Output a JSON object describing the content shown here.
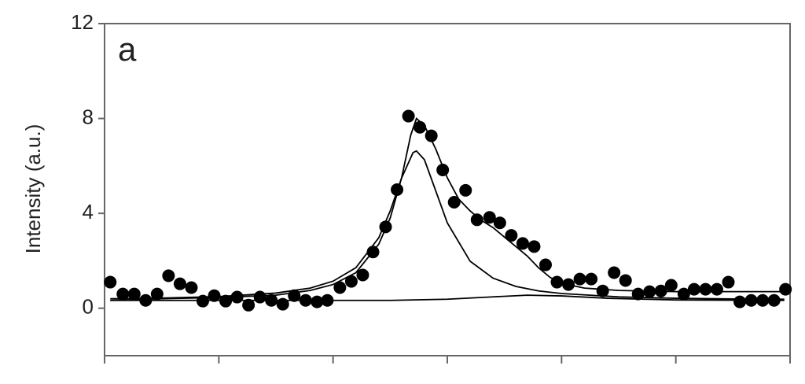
{
  "chart_data": {
    "type": "scatter",
    "panel_label": "a",
    "y_label": "Intensity (a.u.)",
    "xlim": [
      0,
      60
    ],
    "xticks": [
      0,
      10,
      20,
      30,
      40,
      50,
      60
    ],
    "ylim": [
      -2,
      12
    ],
    "yticks": [
      0,
      4,
      8,
      12
    ],
    "series": [
      {
        "mode": "markers",
        "color": "#000000",
        "x": [
          0.5,
          1.6,
          2.6,
          3.6,
          4.6,
          5.6,
          6.6,
          7.6,
          8.6,
          9.6,
          10.6,
          11.6,
          12.6,
          13.6,
          14.6,
          15.6,
          16.6,
          17.6,
          18.6,
          19.5,
          20.6,
          21.6,
          22.6,
          23.5,
          24.6,
          25.6,
          26.6,
          27.6,
          28.6,
          29.6,
          30.6,
          31.6,
          32.6,
          33.7,
          34.6,
          35.6,
          36.6,
          37.6,
          38.6,
          39.6,
          40.6,
          41.6,
          42.6,
          43.6,
          44.6,
          45.6,
          46.7,
          47.7,
          48.7,
          49.6,
          50.7,
          51.6,
          52.6,
          53.6,
          54.6,
          55.6,
          56.6,
          57.6,
          58.6,
          59.6
        ],
        "values": [
          1.1,
          0.6,
          0.6,
          0.33,
          0.6,
          1.37,
          1.03,
          0.87,
          0.3,
          0.53,
          0.3,
          0.47,
          0.13,
          0.47,
          0.33,
          0.17,
          0.53,
          0.33,
          0.27,
          0.33,
          0.87,
          1.13,
          1.4,
          2.37,
          3.43,
          5.0,
          8.1,
          7.63,
          7.27,
          5.83,
          4.47,
          4.97,
          3.73,
          3.83,
          3.6,
          3.07,
          2.73,
          2.6,
          1.83,
          1.1,
          1.0,
          1.23,
          1.23,
          0.73,
          1.5,
          1.17,
          0.6,
          0.7,
          0.73,
          0.97,
          0.6,
          0.8,
          0.8,
          0.8,
          1.1,
          0.27,
          0.33,
          0.33,
          0.33,
          0.8
        ]
      },
      {
        "mode": "line",
        "color": "#000000",
        "x": [
          0.5,
          5,
          10,
          15,
          18,
          20,
          22,
          24,
          25,
          26,
          26.8,
          27.3,
          28,
          29,
          30,
          31,
          32,
          33,
          34,
          35,
          36,
          37,
          38,
          39,
          40,
          42,
          45,
          50,
          55,
          59.5
        ],
        "values": [
          0.33,
          0.4,
          0.45,
          0.55,
          0.75,
          1.0,
          1.5,
          2.7,
          3.8,
          5.5,
          7.3,
          8.0,
          7.7,
          6.7,
          5.5,
          4.6,
          4.1,
          3.7,
          3.4,
          3.0,
          2.6,
          2.2,
          1.7,
          1.3,
          1.05,
          0.85,
          0.75,
          0.7,
          0.7,
          0.7
        ]
      },
      {
        "mode": "line",
        "color": "#000000",
        "x": [
          0.5,
          5,
          10,
          15,
          18,
          20,
          22,
          24,
          25,
          26,
          27,
          27.3,
          28,
          29,
          30,
          32,
          34,
          36,
          38,
          40,
          45,
          50,
          55,
          59.5
        ],
        "values": [
          0.4,
          0.43,
          0.49,
          0.64,
          0.85,
          1.14,
          1.71,
          2.97,
          4.1,
          5.49,
          6.56,
          6.63,
          6.26,
          4.93,
          3.6,
          1.98,
          1.27,
          0.92,
          0.73,
          0.62,
          0.48,
          0.42,
          0.39,
          0.38
        ]
      },
      {
        "mode": "line",
        "color": "#000000",
        "x": [
          0.5,
          25,
          30,
          34,
          37,
          40,
          44,
          50,
          59.5
        ],
        "values": [
          0.33,
          0.33,
          0.38,
          0.48,
          0.55,
          0.52,
          0.42,
          0.35,
          0.33
        ]
      }
    ]
  }
}
